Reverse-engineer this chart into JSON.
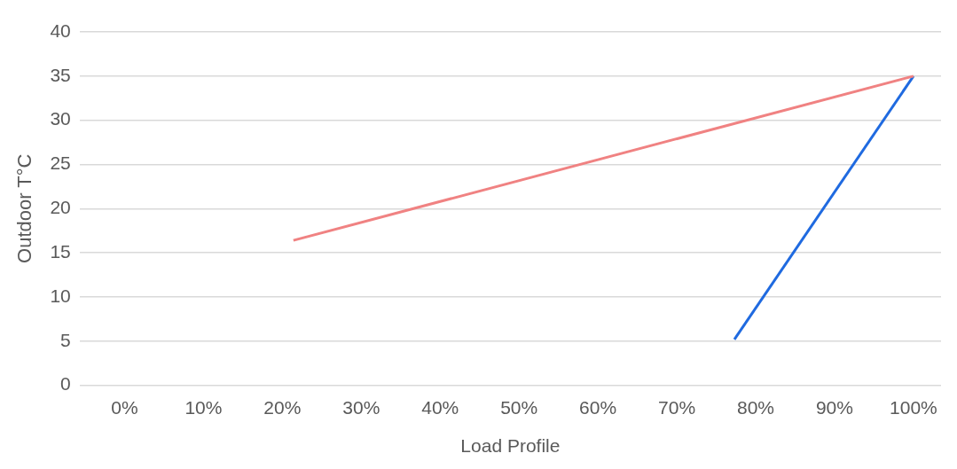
{
  "chart_data": {
    "type": "line",
    "xlabel": "Load Profile",
    "ylabel": "Outdoor T°C",
    "xlim": [
      -5.7,
      103.5
    ],
    "xticks": [
      {
        "value": 0,
        "label": "0%"
      },
      {
        "value": 10,
        "label": "10%"
      },
      {
        "value": 20,
        "label": "20%"
      },
      {
        "value": 30,
        "label": "30%"
      },
      {
        "value": 40,
        "label": "40%"
      },
      {
        "value": 50,
        "label": "50%"
      },
      {
        "value": 60,
        "label": "60%"
      },
      {
        "value": 70,
        "label": "70%"
      },
      {
        "value": 80,
        "label": "80%"
      },
      {
        "value": 90,
        "label": "90%"
      },
      {
        "value": 100,
        "label": "100%"
      }
    ],
    "ylim": [
      0,
      40
    ],
    "yticks": [
      0,
      5,
      10,
      15,
      20,
      25,
      30,
      35,
      40
    ],
    "series": [
      {
        "color": "#f08282",
        "x": [
          21.4,
          100
        ],
        "values": [
          16.4,
          35
        ]
      },
      {
        "color": "#1f6ae0",
        "x": [
          77.3,
          100
        ],
        "values": [
          5.2,
          35
        ]
      }
    ],
    "grid": "y",
    "legend": false,
    "marker": "none",
    "line_style": "solid"
  }
}
